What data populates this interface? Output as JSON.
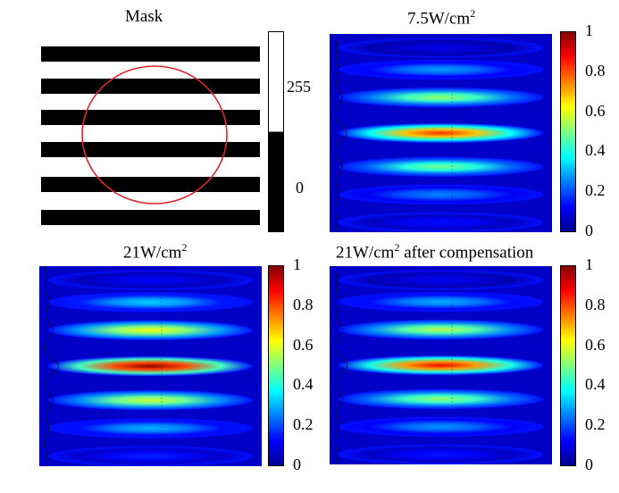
{
  "panels": {
    "mask": {
      "title": "Mask",
      "stripe_color": "#000000",
      "circle_color": "#e0262c",
      "colorbar": {
        "ticks": [
          "255",
          "0"
        ]
      }
    },
    "p1": {
      "title_value": "7.5W/cm",
      "title_exp": "2",
      "title_suffix": ""
    },
    "p2": {
      "title_value": "21W/cm",
      "title_exp": "2",
      "title_suffix": ""
    },
    "p3": {
      "title_value": "21W/cm",
      "title_exp": "2",
      "title_suffix": " after compensation"
    }
  },
  "colorbar": {
    "ticks": [
      "1",
      "0.8",
      "0.6",
      "0.4",
      "0.2",
      "0"
    ],
    "colormap": "jet"
  },
  "colors": {
    "background": "#00009c",
    "low": "#1034d8",
    "mid": "#22c8f0",
    "high": "#ffd21a",
    "peak": "#c8100a"
  }
}
